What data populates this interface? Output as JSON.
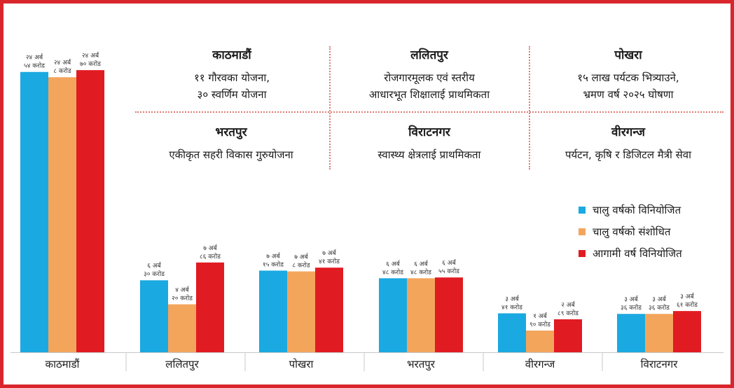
{
  "chart_data": {
    "type": "bar",
    "categories": [
      "काठमाडौं",
      "ललितपुर",
      "पोखरा",
      "भरतपुर",
      "वीरगन्ज",
      "विराटनगर"
    ],
    "series": [
      {
        "name": "चालु वर्षको विनियोजित",
        "color": "#1ba9e1",
        "values": [
          2454,
          630,
          715,
          648,
          341,
          336
        ],
        "labels": [
          [
            "२४ अर्ब",
            "५४ करोड"
          ],
          [
            "६ अर्ब",
            "३० करोड"
          ],
          [
            "७ अर्ब",
            "१५ करोड"
          ],
          [
            "६ अर्ब",
            "४८ करोड"
          ],
          [
            "३ अर्ब",
            "४१ करोड"
          ],
          [
            "३ अर्ब",
            "३६ करोड"
          ]
        ]
      },
      {
        "name": "चालु वर्षको संशोधित",
        "color": "#f4a55c",
        "values": [
          2408,
          420,
          708,
          648,
          190,
          336
        ],
        "labels": [
          [
            "२४ अर्ब",
            "८ करोड"
          ],
          [
            "४ अर्ब",
            "२० करोड"
          ],
          [
            "७ अर्ब",
            "८ करोड"
          ],
          [
            "६ अर्ब",
            "४८ करोड"
          ],
          [
            "१ अर्ब",
            "९० करोड"
          ],
          [
            "३ अर्ब",
            "३६ करोड"
          ]
        ]
      },
      {
        "name": "आगामी वर्ष विनियोजित",
        "color": "#e11b22",
        "values": [
          2470,
          786,
          741,
          655,
          289,
          361
        ],
        "labels": [
          [
            "२४ अर्ब",
            "७० करोड"
          ],
          [
            "७ अर्ब",
            "८६ करोड"
          ],
          [
            "७ अर्ब",
            "४१ करोड"
          ],
          [
            "६ अर्ब",
            "५५ करोड"
          ],
          [
            "२ अर्ब",
            "८९ करोड"
          ],
          [
            "३ अर्ब",
            "६१ करोड"
          ]
        ]
      }
    ],
    "ylim": [
      0,
      2900
    ],
    "xlabel": "",
    "ylabel": ""
  },
  "panels": [
    {
      "city": "काठमाडौं",
      "lines": [
        "११ गौरवका योजना,",
        "३० स्वर्णिम योजना"
      ]
    },
    {
      "city": "ललितपुर",
      "lines": [
        "रोजगारमूलक एवं स्तरीय",
        "आधारभूत शिक्षालाई प्राथमिकता"
      ]
    },
    {
      "city": "पोखरा",
      "lines": [
        "१५ लाख पर्यटक भित्र्याउने,",
        "भ्रमण वर्ष २०२५ घोषणा"
      ]
    },
    {
      "city": "भरतपुर",
      "lines": [
        "एकीकृत सहरी विकास गुरुयोजना"
      ]
    },
    {
      "city": "विराटनगर",
      "lines": [
        "स्वास्थ्य क्षेत्रलाई प्राथमिकता"
      ]
    },
    {
      "city": "वीरगन्ज",
      "lines": [
        "पर्यटन, कृषि र डिजिटल मैत्री सेवा"
      ]
    }
  ],
  "legend": [
    {
      "label": "चालु वर्षको विनियोजित",
      "color": "#1ba9e1"
    },
    {
      "label": "चालु वर्षको संशोधित",
      "color": "#f4a55c"
    },
    {
      "label": "आगामी वर्ष विनियोजित",
      "color": "#e11b22"
    }
  ]
}
